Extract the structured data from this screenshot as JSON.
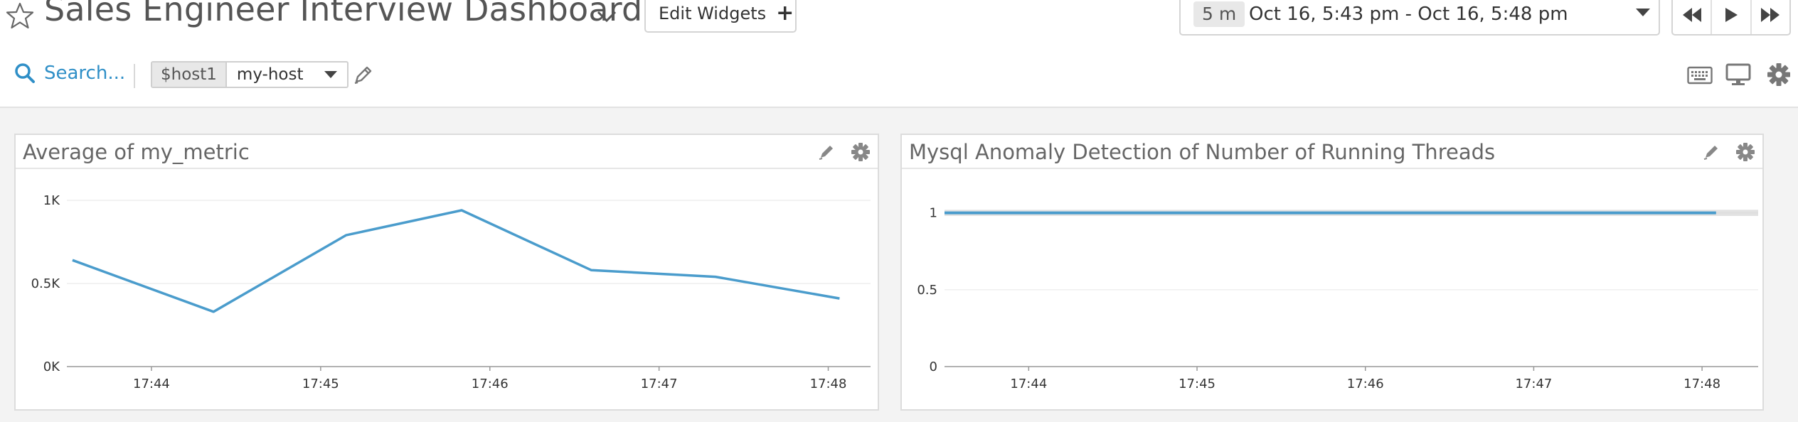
{
  "dashboard": {
    "title": "Sales Engineer Interview Dashboard",
    "edit_widgets_label": "Edit Widgets"
  },
  "timeframe": {
    "duration_badge": "5 m",
    "range_text": "Oct 16, 5:43 pm - Oct 16, 5:48 pm"
  },
  "toolbar": {
    "search_label": "Search...",
    "template_variable": {
      "name": "$host1",
      "value": "my-host"
    }
  },
  "colors": {
    "accent": "#2f8fc7",
    "series": "#4a9ccc",
    "band": "#d6d6d6"
  },
  "widgets": [
    {
      "title": "Average of my_metric",
      "chart_data": {
        "type": "line",
        "x_ticks": [
          "17:44",
          "17:45",
          "17:46",
          "17:47",
          "17:48"
        ],
        "y_ticks": [
          "0K",
          "0.5K",
          "1K"
        ],
        "ylim": [
          0,
          1000
        ],
        "xlim": [
          "17:43:30",
          "17:48:15"
        ],
        "series": [
          {
            "x": [
              "17:43:32",
              "17:44:22",
              "17:45:09",
              "17:45:50",
              "17:46:36",
              "17:47:20",
              "17:48:04"
            ],
            "values": [
              640,
              330,
              790,
              940,
              580,
              540,
              410
            ]
          }
        ]
      }
    },
    {
      "title": "Mysql Anomaly Detection of Number of Running Threads",
      "chart_data": {
        "type": "line",
        "x_ticks": [
          "17:44",
          "17:45",
          "17:46",
          "17:47",
          "17:48"
        ],
        "y_ticks": [
          "0",
          "0.5",
          "1"
        ],
        "ylim": [
          0,
          1.1
        ],
        "xlim": [
          "17:43:30",
          "17:48:20"
        ],
        "band": {
          "lower": 0.98,
          "upper": 1.02
        },
        "series": [
          {
            "x": [
              "17:43:30",
              "17:48:05"
            ],
            "values": [
              1,
              1
            ]
          }
        ]
      }
    }
  ]
}
